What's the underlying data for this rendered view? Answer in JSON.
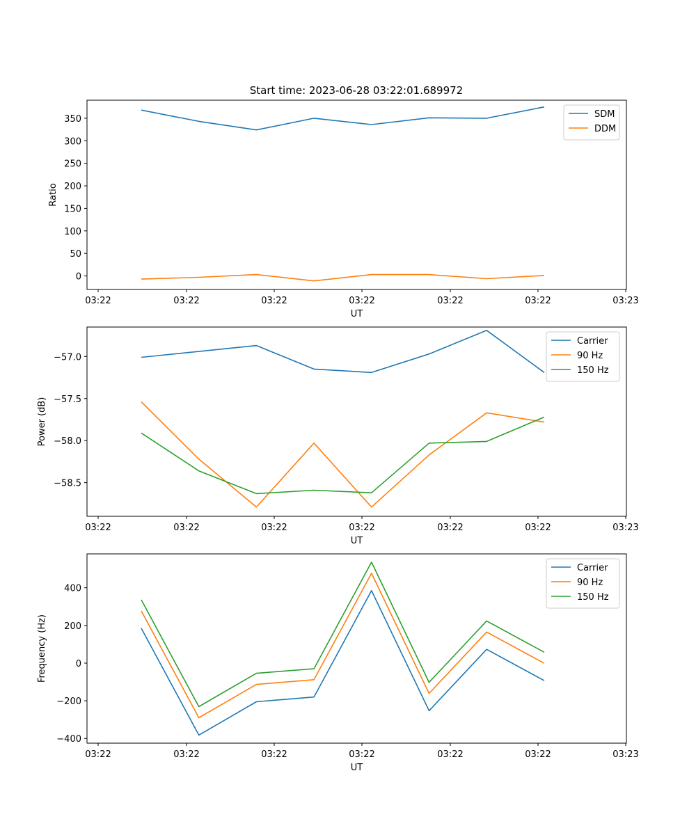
{
  "figure": {
    "title": "Start time: 2023-06-28 03:22:01.689972"
  },
  "chart_data": [
    {
      "type": "line",
      "xlabel": "UT",
      "ylabel": "Ratio",
      "xticks": [
        "03:22",
        "03:22",
        "03:22",
        "03:22",
        "03:22",
        "03:22",
        "03:23"
      ],
      "yticks": [
        "0",
        "50",
        "100",
        "150",
        "200",
        "250",
        "300",
        "350"
      ],
      "ylim": [
        -30,
        390
      ],
      "x": [
        1,
        2,
        3,
        4,
        5,
        6,
        7,
        8
      ],
      "series": [
        {
          "name": "SDM",
          "color": "#1f77b4",
          "values": [
            368,
            343,
            324,
            350,
            336,
            351,
            350,
            375
          ]
        },
        {
          "name": "DDM",
          "color": "#ff7f0e",
          "values": [
            -7,
            -3,
            3,
            -11,
            3,
            3,
            -6,
            1
          ]
        }
      ],
      "legend": "top-right",
      "grid": false
    },
    {
      "type": "line",
      "xlabel": "UT",
      "ylabel": "Power (dB)",
      "xticks": [
        "03:22",
        "03:22",
        "03:22",
        "03:22",
        "03:22",
        "03:22",
        "03:23"
      ],
      "yticks": [
        "−58.5",
        "−58.0",
        "−57.5",
        "−57.0"
      ],
      "ylim": [
        -58.9,
        -56.65
      ],
      "x": [
        1,
        2,
        3,
        4,
        5,
        6,
        7,
        8
      ],
      "series": [
        {
          "name": "Carrier",
          "color": "#1f77b4",
          "values": [
            -57.01,
            -56.94,
            -56.87,
            -57.15,
            -57.19,
            -56.97,
            -56.69,
            -57.19
          ]
        },
        {
          "name": "90 Hz",
          "color": "#ff7f0e",
          "values": [
            -57.54,
            -58.22,
            -58.79,
            -58.03,
            -58.79,
            -58.17,
            -57.67,
            -57.78
          ]
        },
        {
          "name": "150 Hz",
          "color": "#2ca02c",
          "values": [
            -57.91,
            -58.36,
            -58.63,
            -58.59,
            -58.62,
            -58.03,
            -58.01,
            -57.72
          ]
        }
      ],
      "legend": "top-right",
      "grid": false
    },
    {
      "type": "line",
      "xlabel": "UT",
      "ylabel": "Frequency (Hz)",
      "xticks": [
        "03:22",
        "03:22",
        "03:22",
        "03:22",
        "03:22",
        "03:22",
        "03:23"
      ],
      "yticks": [
        "−400",
        "−200",
        "0",
        "200",
        "400"
      ],
      "ylim": [
        -425,
        580
      ],
      "x": [
        1,
        2,
        3,
        4,
        5,
        6,
        7,
        8
      ],
      "series": [
        {
          "name": "Carrier",
          "color": "#1f77b4",
          "values": [
            185,
            -382,
            -205,
            -180,
            385,
            -253,
            73,
            -93
          ]
        },
        {
          "name": "90 Hz",
          "color": "#ff7f0e",
          "values": [
            277,
            -290,
            -113,
            -88,
            477,
            -161,
            165,
            -1
          ]
        },
        {
          "name": "150 Hz",
          "color": "#2ca02c",
          "values": [
            336,
            -231,
            -54,
            -30,
            536,
            -102,
            224,
            58
          ]
        }
      ],
      "legend": "top-right",
      "grid": false
    }
  ]
}
